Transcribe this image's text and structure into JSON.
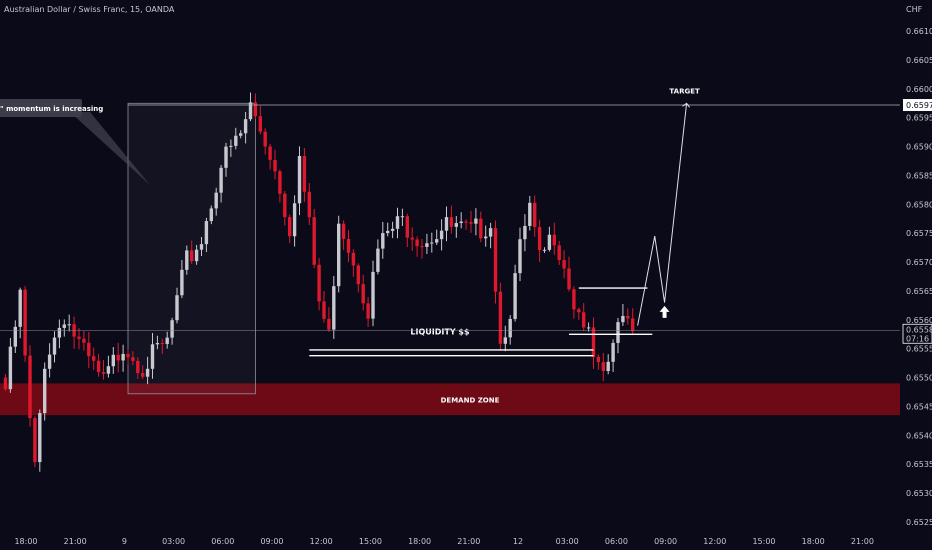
{
  "header": {
    "symbol_title": "Australian Dollar / Swiss Franc, 15, OANDA",
    "currency": "CHF"
  },
  "price_badge": {
    "price": "0.65582",
    "countdown": "07:16"
  },
  "target_badge": "0.65972",
  "colors": {
    "background": "#0a0a18",
    "bull": "#c8c8d0",
    "bear": "#e0182d",
    "demand_zone": "#6d0a16",
    "text": "#ffffff"
  },
  "chart_data": {
    "type": "candlestick",
    "y_range": [
      0.6525,
      0.6614
    ],
    "y_ticks": [
      0.6525,
      0.653,
      0.6535,
      0.654,
      0.6545,
      0.655,
      0.6555,
      0.656,
      0.6565,
      0.657,
      0.6575,
      0.658,
      0.6585,
      0.659,
      0.6595,
      0.66,
      0.6605,
      0.661
    ],
    "y_tick_labels": [
      "0.65250",
      "0.65300",
      "0.65350",
      "0.65400",
      "0.65450",
      "0.65500",
      "0.65550",
      "0.65600",
      "0.65650",
      "0.65700",
      "0.65750",
      "0.65800",
      "0.65850",
      "0.65900",
      "0.65950",
      "0.66000",
      "0.66050",
      "0.66100"
    ],
    "x_ticks": [
      "18:00",
      "21:00",
      "9",
      "03:00",
      "06:00",
      "09:00",
      "12:00",
      "15:00",
      "18:00",
      "21:00",
      "12",
      "03:00",
      "06:00",
      "09:00",
      "12:00",
      "15:00",
      "18:00",
      "21:00"
    ],
    "current_price": 0.65582,
    "target_price": 0.65972,
    "waypoints": [
      {
        "i": 0,
        "p": 0.6548
      },
      {
        "i": 3,
        "p": 0.6564
      },
      {
        "i": 5,
        "p": 0.6542
      },
      {
        "i": 6,
        "p": 0.6534
      },
      {
        "i": 8,
        "p": 0.6553
      },
      {
        "i": 12,
        "p": 0.6561
      },
      {
        "i": 16,
        "p": 0.6554
      },
      {
        "i": 20,
        "p": 0.6549
      },
      {
        "i": 24,
        "p": 0.6556
      },
      {
        "i": 28,
        "p": 0.6552
      },
      {
        "i": 33,
        "p": 0.6556
      },
      {
        "i": 37,
        "p": 0.657
      },
      {
        "i": 40,
        "p": 0.6574
      },
      {
        "i": 44,
        "p": 0.6587
      },
      {
        "i": 48,
        "p": 0.6592
      },
      {
        "i": 50,
        "p": 0.6597
      },
      {
        "i": 54,
        "p": 0.6589
      },
      {
        "i": 56,
        "p": 0.6583
      },
      {
        "i": 58,
        "p": 0.6576
      },
      {
        "i": 60,
        "p": 0.6588
      },
      {
        "i": 62,
        "p": 0.6576
      },
      {
        "i": 64,
        "p": 0.6563
      },
      {
        "i": 66,
        "p": 0.6557
      },
      {
        "i": 68,
        "p": 0.6578
      },
      {
        "i": 70,
        "p": 0.6573
      },
      {
        "i": 72,
        "p": 0.6568
      },
      {
        "i": 74,
        "p": 0.6562
      },
      {
        "i": 76,
        "p": 0.6572
      },
      {
        "i": 78,
        "p": 0.6575
      },
      {
        "i": 81,
        "p": 0.6577
      },
      {
        "i": 85,
        "p": 0.6574
      },
      {
        "i": 90,
        "p": 0.6576
      },
      {
        "i": 95,
        "p": 0.6575
      },
      {
        "i": 99,
        "p": 0.6577
      },
      {
        "i": 101,
        "p": 0.6556
      },
      {
        "i": 103,
        "p": 0.6562
      },
      {
        "i": 105,
        "p": 0.6572
      },
      {
        "i": 107,
        "p": 0.6579
      },
      {
        "i": 109,
        "p": 0.657
      },
      {
        "i": 112,
        "p": 0.6575
      },
      {
        "i": 114,
        "p": 0.657
      },
      {
        "i": 116,
        "p": 0.6563
      },
      {
        "i": 118,
        "p": 0.656
      },
      {
        "i": 120,
        "p": 0.6553
      },
      {
        "i": 122,
        "p": 0.6549
      },
      {
        "i": 124,
        "p": 0.6556
      },
      {
        "i": 126,
        "p": 0.656
      },
      {
        "i": 127,
        "p": 0.6562
      },
      {
        "i": 128,
        "p": 0.65582
      }
    ],
    "annotations": {
      "momentum_label": "\" momentum is increasing",
      "liquidity_label": "LIQUIDITY $$",
      "demand_zone_label": "DEMAND ZONE",
      "target_label": "TARGET",
      "demand_zone_range": [
        0.65435,
        0.6549
      ],
      "liquidity_levels": [
        0.65548,
        0.65538
      ],
      "right_levels": [
        0.65655,
        0.65575
      ],
      "projection": [
        0.6559,
        0.65745,
        0.6563,
        0.65975
      ]
    }
  }
}
